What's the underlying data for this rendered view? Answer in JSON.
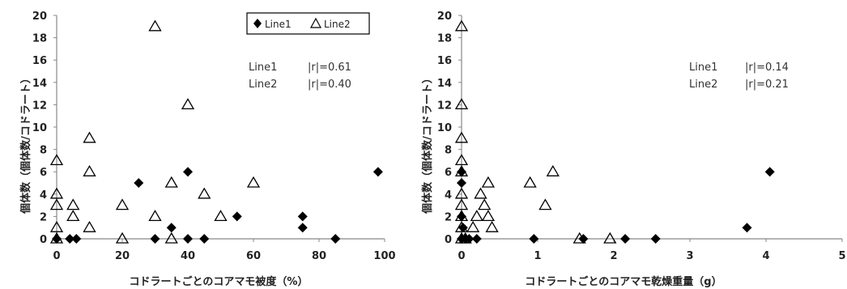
{
  "legend": {
    "line1": "Line1",
    "line2": "Line2"
  },
  "chart_data": [
    {
      "type": "scatter",
      "xlabel": "コドラートごとのコアマモ被度（%）",
      "ylabel": "個体数（個体数/コドラート）",
      "xlim": [
        0,
        100
      ],
      "ylim": [
        0,
        20
      ],
      "xticks": [
        0,
        20,
        40,
        60,
        80,
        100
      ],
      "yticks": [
        0,
        2,
        4,
        6,
        8,
        10,
        12,
        14,
        16,
        18,
        20
      ],
      "legend": "top-center",
      "annotations": [
        {
          "series": "Line1",
          "stat": "|r|=0.61"
        },
        {
          "series": "Line2",
          "stat": "|r|=0.40"
        }
      ],
      "series": [
        {
          "name": "Line1",
          "marker": "diamond-filled",
          "points": [
            [
              0,
              0
            ],
            [
              4,
              0
            ],
            [
              6,
              0
            ],
            [
              25,
              5
            ],
            [
              30,
              0
            ],
            [
              35,
              1
            ],
            [
              40,
              6
            ],
            [
              40,
              0
            ],
            [
              45,
              0
            ],
            [
              55,
              2
            ],
            [
              75,
              2
            ],
            [
              75,
              1
            ],
            [
              85,
              0
            ],
            [
              98,
              6
            ]
          ]
        },
        {
          "name": "Line2",
          "marker": "triangle-open",
          "points": [
            [
              0,
              7
            ],
            [
              0,
              4
            ],
            [
              0,
              3
            ],
            [
              0,
              1
            ],
            [
              0,
              0
            ],
            [
              5,
              3
            ],
            [
              5,
              2
            ],
            [
              10,
              9
            ],
            [
              10,
              6
            ],
            [
              10,
              1
            ],
            [
              20,
              3
            ],
            [
              20,
              0
            ],
            [
              30,
              19
            ],
            [
              30,
              2
            ],
            [
              35,
              5
            ],
            [
              35,
              0
            ],
            [
              40,
              12
            ],
            [
              45,
              4
            ],
            [
              50,
              2
            ],
            [
              60,
              5
            ]
          ]
        }
      ]
    },
    {
      "type": "scatter",
      "xlabel": "コドラートごとのコアマモ乾燥重量（g）",
      "ylabel": "個体数（個体数/コドラート）",
      "xlim": [
        0,
        5
      ],
      "ylim": [
        0,
        20
      ],
      "xticks": [
        0,
        1,
        2,
        3,
        4,
        5
      ],
      "yticks": [
        0,
        2,
        4,
        6,
        8,
        10,
        12,
        14,
        16,
        18,
        20
      ],
      "annotations": [
        {
          "series": "Line1",
          "stat": "|r|=0.14"
        },
        {
          "series": "Line2",
          "stat": "|r|=0.21"
        }
      ],
      "series": [
        {
          "name": "Line1",
          "marker": "diamond-filled",
          "points": [
            [
              0,
              6
            ],
            [
              0,
              5
            ],
            [
              0,
              2
            ],
            [
              0,
              0
            ],
            [
              0.02,
              1
            ],
            [
              0.05,
              0
            ],
            [
              0.1,
              0
            ],
            [
              0.2,
              0
            ],
            [
              0.95,
              0
            ],
            [
              1.6,
              0
            ],
            [
              2.15,
              0
            ],
            [
              2.55,
              0
            ],
            [
              3.75,
              1
            ],
            [
              4.05,
              6
            ]
          ]
        },
        {
          "name": "Line2",
          "marker": "triangle-open",
          "points": [
            [
              0,
              19
            ],
            [
              0,
              12
            ],
            [
              0,
              9
            ],
            [
              0,
              7
            ],
            [
              0,
              6
            ],
            [
              0,
              4
            ],
            [
              0,
              3
            ],
            [
              0,
              2
            ],
            [
              0,
              1
            ],
            [
              0,
              0
            ],
            [
              0.05,
              0
            ],
            [
              0.15,
              1
            ],
            [
              0.2,
              2
            ],
            [
              0.25,
              4
            ],
            [
              0.3,
              3
            ],
            [
              0.35,
              5
            ],
            [
              0.35,
              2
            ],
            [
              0.4,
              1
            ],
            [
              0.9,
              5
            ],
            [
              1.1,
              3
            ],
            [
              1.2,
              6
            ],
            [
              1.55,
              0
            ],
            [
              1.95,
              0
            ]
          ]
        }
      ]
    }
  ]
}
